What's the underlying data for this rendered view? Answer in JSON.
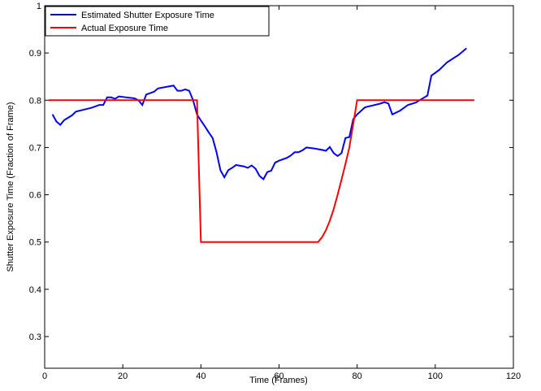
{
  "chart_data": {
    "type": "line",
    "xlabel": "Time (Frames)",
    "ylabel": "Shutter Exposure Time (Fraction of Frame)",
    "xlim": [
      0,
      120
    ],
    "xticks": [
      0,
      20,
      40,
      60,
      80,
      100,
      120
    ],
    "ylim": [
      0.233,
      1
    ],
    "yticks": [
      0.3,
      0.4,
      0.5,
      0.6,
      0.7,
      0.8,
      0.9,
      1
    ],
    "legend": "upper-left",
    "series": [
      {
        "name": "Estimated Shutter Exposure Time",
        "color": "#0000ff",
        "x": [
          2,
          3,
          4,
          5,
          7,
          8,
          10,
          12,
          14,
          15,
          16,
          17,
          18,
          19,
          21,
          23,
          24,
          25,
          26,
          27,
          28,
          29,
          31,
          33,
          34,
          35,
          36,
          37,
          38,
          39,
          40,
          41,
          42,
          43,
          44,
          45,
          46,
          47,
          48,
          49,
          51,
          52,
          53,
          54,
          55,
          56,
          57,
          58,
          59,
          60,
          62,
          63,
          64,
          65,
          66,
          67,
          69,
          71,
          72,
          73,
          74,
          75,
          76,
          77,
          78,
          79,
          80,
          82,
          84,
          86,
          87,
          88,
          89,
          91,
          93,
          95,
          98,
          99,
          101,
          103,
          106,
          108
        ],
        "values": [
          0.77,
          0.755,
          0.748,
          0.758,
          0.768,
          0.776,
          0.78,
          0.784,
          0.79,
          0.79,
          0.806,
          0.806,
          0.803,
          0.808,
          0.806,
          0.804,
          0.8,
          0.79,
          0.812,
          0.815,
          0.818,
          0.825,
          0.828,
          0.831,
          0.82,
          0.82,
          0.823,
          0.82,
          0.8,
          0.77,
          0.757,
          0.745,
          0.732,
          0.72,
          0.69,
          0.652,
          0.637,
          0.652,
          0.657,
          0.663,
          0.66,
          0.657,
          0.662,
          0.655,
          0.64,
          0.633,
          0.648,
          0.651,
          0.668,
          0.672,
          0.678,
          0.683,
          0.69,
          0.69,
          0.694,
          0.7,
          0.698,
          0.695,
          0.693,
          0.701,
          0.688,
          0.682,
          0.688,
          0.72,
          0.722,
          0.76,
          0.77,
          0.785,
          0.789,
          0.793,
          0.796,
          0.793,
          0.77,
          0.778,
          0.79,
          0.795,
          0.81,
          0.852,
          0.864,
          0.88,
          0.896,
          0.91
        ]
      },
      {
        "name": "Actual Exposure Time",
        "color": "#ff0000",
        "x": [
          1,
          39,
          40,
          70,
          71,
          72,
          73,
          74,
          75,
          76,
          77,
          78,
          79,
          80,
          110
        ],
        "values": [
          0.8,
          0.8,
          0.5,
          0.5,
          0.51,
          0.525,
          0.545,
          0.57,
          0.6,
          0.632,
          0.665,
          0.7,
          0.75,
          0.8,
          0.8
        ]
      }
    ]
  }
}
